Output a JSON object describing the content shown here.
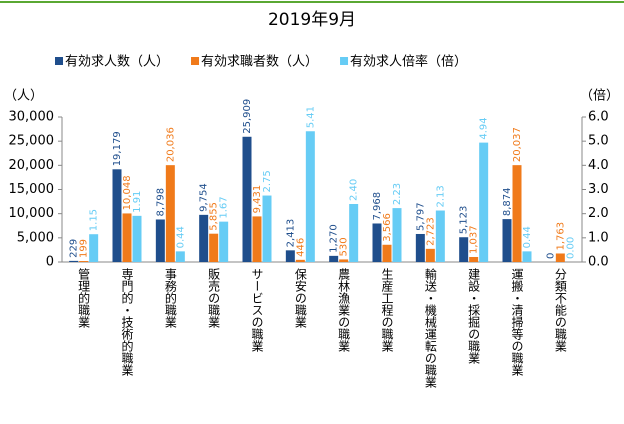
{
  "chart_data": {
    "type": "bar",
    "title": "2019年9月",
    "y_label": "（人）",
    "y2_label": "（倍）",
    "categories": [
      "管理的職業",
      "専門的・技術的職業",
      "事務的職業",
      "販売の職業",
      "サービスの職業",
      "保安の職業",
      "農林漁業の職業",
      "生産工程の職業",
      "輸送・機械運転の職業",
      "建設・採掘の職業",
      "運搬・清掃等の職業",
      "分類不能の職業"
    ],
    "series": [
      {
        "name": "有効求人数（人）",
        "color": "#1f4e8c",
        "values": [
          229,
          19179,
          8798,
          9754,
          25909,
          2413,
          1270,
          7968,
          5797,
          5123,
          8874,
          0
        ],
        "value_labels": [
          "229",
          "19,179",
          "8,798",
          "9,754",
          "25,909",
          "2,413",
          "1,270",
          "7,968",
          "5,797",
          "5,123",
          "8,874",
          "0"
        ]
      },
      {
        "name": "有効求職者数（人）",
        "color": "#f07a1a",
        "values": [
          199,
          10048,
          20036,
          5855,
          9431,
          446,
          530,
          3566,
          2723,
          1037,
          20037,
          1763
        ],
        "value_labels": [
          "199",
          "10,048",
          "20,036",
          "5,855",
          "9,431",
          "446",
          "530",
          "3,566",
          "2,723",
          "1,037",
          "20,037",
          "1,763"
        ]
      },
      {
        "name": "有効求人倍率（倍）",
        "color": "#66ccf5",
        "axis": "y2",
        "values": [
          1.15,
          1.91,
          0.44,
          1.67,
          2.75,
          5.41,
          2.4,
          2.23,
          2.13,
          4.94,
          0.44,
          0
        ],
        "value_labels": [
          "1.15",
          "1.91",
          "0.44",
          "1.67",
          "2.75",
          "5.41",
          "2.40",
          "2.23",
          "2.13",
          "4.94",
          "0.44",
          "0.00"
        ]
      }
    ],
    "ylim": [
      0,
      30000
    ],
    "yticks": [
      0,
      {
        "value": 5000,
        "label": "5,000"
      },
      {
        "value": 10000,
        "label": "10,000"
      },
      {
        "value": 15000,
        "label": "15,000"
      },
      {
        "value": 20000,
        "label": "20,000"
      },
      {
        "value": 25000,
        "label": "25,000"
      },
      {
        "value": 30000,
        "label": "30,000"
      }
    ],
    "y2lim": [
      0,
      6
    ],
    "y2ticks": [
      {
        "value": 0,
        "label": "0.0"
      },
      {
        "value": 1,
        "label": "1.0"
      },
      {
        "value": 2,
        "label": "2.0"
      },
      {
        "value": 3,
        "label": "3.0"
      },
      {
        "value": 4,
        "label": "4.0"
      },
      {
        "value": 5,
        "label": "5.0"
      },
      {
        "value": 6,
        "label": "6.0"
      }
    ]
  }
}
